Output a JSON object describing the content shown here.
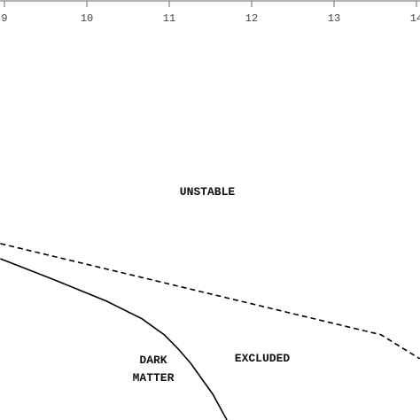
{
  "chart_data": {
    "type": "line",
    "xlim": [
      8.946,
      14.043
    ],
    "xticks": [
      9,
      10,
      11,
      12,
      13,
      14
    ],
    "ylim": [
      0,
      100
    ],
    "series": [
      {
        "color": "#000000",
        "dashed": true,
        "x": [
          8.95,
          13.57,
          14.04
        ],
        "values": [
          42.0,
          20.3,
          14.6
        ]
      },
      {
        "color": "#000000",
        "dashed": false,
        "x": [
          8.95,
          9.59,
          10.24,
          10.67,
          10.94,
          11.1,
          11.26,
          11.53,
          11.7
        ],
        "values": [
          38.4,
          33.5,
          28.3,
          24.1,
          20.3,
          17.1,
          13.5,
          6.1,
          0
        ]
      }
    ],
    "annotations": [
      "UNSTABLE",
      "EXCLUDED",
      "DARK",
      "MATTER"
    ]
  }
}
